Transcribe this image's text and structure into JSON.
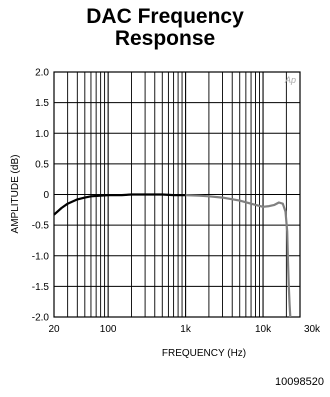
{
  "title_line1": "DAC Frequency",
  "title_line2": "Response",
  "figure_code": "10098520",
  "watermark_label": "Ap",
  "chart_data": {
    "type": "line",
    "xlabel": "FREQUENCY (Hz)",
    "ylabel": "AMPLITUDE (dB)",
    "x_scale": "log",
    "xlim": [
      20,
      30000
    ],
    "ylim": [
      -2.0,
      2.0
    ],
    "x_ticks": [
      {
        "value": 20,
        "label": "20"
      },
      {
        "value": 100,
        "label": "100"
      },
      {
        "value": 1000,
        "label": "1k"
      },
      {
        "value": 10000,
        "label": "10k"
      },
      {
        "value": 30000,
        "label": "30k"
      }
    ],
    "y_ticks": [
      {
        "value": 2.0,
        "label": "2.0"
      },
      {
        "value": 1.5,
        "label": "1.5"
      },
      {
        "value": 1.0,
        "label": "1.0"
      },
      {
        "value": 0.5,
        "label": "0.5"
      },
      {
        "value": 0,
        "label": "0"
      },
      {
        "value": -0.5,
        "label": "-0.5"
      },
      {
        "value": -1.0,
        "label": "-1.0"
      },
      {
        "value": -1.5,
        "label": "-1.5"
      },
      {
        "value": -2.0,
        "label": "-2.0"
      }
    ],
    "grid": true,
    "series": [
      {
        "color": "#000000",
        "x": [
          20,
          25,
          30,
          40,
          50,
          60,
          80,
          100,
          150,
          200,
          300,
          500,
          700,
          1000
        ],
        "y": [
          -0.33,
          -0.22,
          -0.15,
          -0.08,
          -0.05,
          -0.03,
          -0.02,
          -0.01,
          -0.01,
          0.0,
          0.0,
          0.0,
          -0.01,
          -0.01
        ]
      },
      {
        "color": "#808080",
        "x": [
          1000,
          1500,
          2000,
          3000,
          5000,
          7000,
          10000,
          12000,
          14000,
          16000,
          18000,
          19500,
          20500,
          21000,
          21500,
          22000,
          22500
        ],
        "y": [
          -0.01,
          -0.02,
          -0.03,
          -0.05,
          -0.1,
          -0.15,
          -0.2,
          -0.19,
          -0.17,
          -0.13,
          -0.15,
          -0.28,
          -0.6,
          -1.1,
          -1.5,
          -1.8,
          -2.0
        ]
      }
    ]
  }
}
